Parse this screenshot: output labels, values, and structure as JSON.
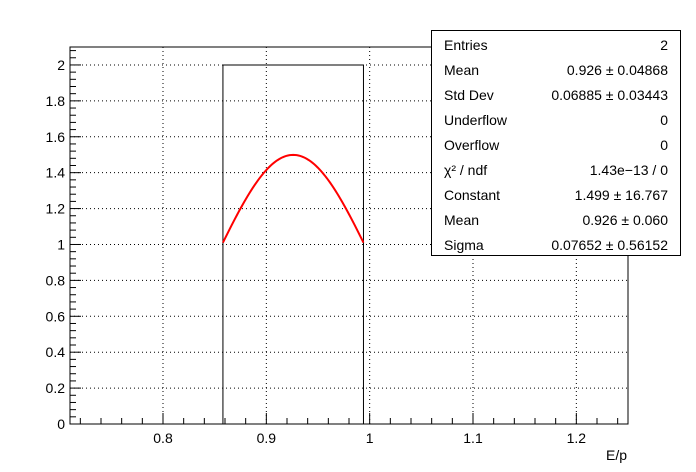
{
  "chart_data": {
    "type": "histogram",
    "xlabel": "E/p",
    "ylabel": "",
    "xlim": [
      0.71,
      1.25
    ],
    "ylim": [
      0,
      2.1
    ],
    "x_ticks": [
      0.8,
      0.9,
      1,
      1.1,
      1.2
    ],
    "x_tick_labels": [
      "0.8",
      "0.9",
      "1",
      "1.1",
      "1.2"
    ],
    "y_ticks": [
      0,
      0.2,
      0.4,
      0.6,
      0.8,
      1,
      1.2,
      1.4,
      1.6,
      1.8,
      2
    ],
    "y_tick_labels": [
      "0",
      "0.2",
      "0.4",
      "0.6",
      "0.8",
      "1",
      "1.2",
      "1.4",
      "1.6",
      "1.8",
      "2"
    ],
    "grid": true,
    "histogram": {
      "bin_edges": [
        0.858,
        0.994
      ],
      "counts": [
        2
      ],
      "color": "#000000"
    },
    "fit": {
      "function": "gaus",
      "constant": 1.499,
      "mean": 0.926,
      "sigma": 0.07652,
      "x_range": [
        0.858,
        0.994
      ],
      "color": "#ff0000"
    },
    "stats_box": [
      {
        "label": "Entries",
        "value": "2"
      },
      {
        "label": "Mean",
        "value": "0.926 ± 0.04868"
      },
      {
        "label": "Std Dev",
        "value": "0.06885 ± 0.03443"
      },
      {
        "label": "Underflow",
        "value": "0"
      },
      {
        "label": "Overflow",
        "value": "0"
      },
      {
        "label": "χ² / ndf",
        "value": "1.43e−13 / 0"
      },
      {
        "label": "Constant",
        "value": "1.499 ± 16.767"
      },
      {
        "label": "Mean",
        "value": "0.926 ± 0.060"
      },
      {
        "label": "Sigma",
        "value": "0.07652 ± 0.56152"
      }
    ]
  }
}
